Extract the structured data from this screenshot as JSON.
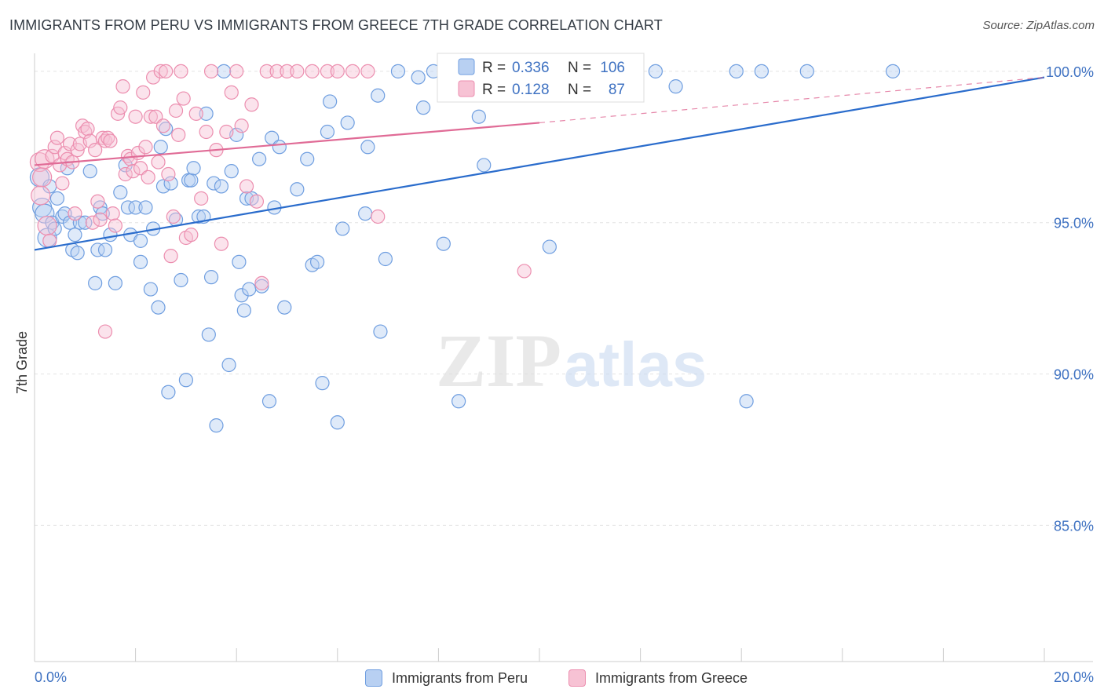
{
  "chart_data": {
    "type": "scatter",
    "title": "IMMIGRANTS FROM PERU VS IMMIGRANTS FROM GREECE 7TH GRADE CORRELATION CHART",
    "source": "Source: ZipAtlas.com",
    "ylabel": "7th Grade",
    "xlabel": "",
    "xlim": [
      0,
      20
    ],
    "ylim": [
      80.5,
      100.8
    ],
    "x_tick_labels": [
      "0.0%",
      "20.0%"
    ],
    "y_ticks": [
      {
        "value": 100,
        "label": "100.0%"
      },
      {
        "value": 95,
        "label": "95.0%"
      },
      {
        "value": 90,
        "label": "90.0%"
      },
      {
        "value": 85,
        "label": "85.0%"
      }
    ],
    "grid": true,
    "watermark": "ZIPatlas",
    "legend": {
      "placement": "top-center",
      "rows": [
        {
          "r_label": "R =",
          "r_value": "0.336",
          "n_label": "N =",
          "n_value": "106"
        },
        {
          "r_label": "R =",
          "r_value": "0.128",
          "n_label": "N =",
          "n_value": "87"
        }
      ]
    },
    "series": [
      {
        "name": "Immigrants from Peru",
        "color": "#6f9ee0",
        "fill": "#b8d0f2",
        "line_color": "#2a6ccc",
        "trend": {
          "x": [
            0,
            20
          ],
          "y": [
            94.1,
            99.8
          ]
        },
        "points": [
          [
            0.1,
            96.5
          ],
          [
            0.15,
            95.5
          ],
          [
            0.2,
            95.3
          ],
          [
            0.25,
            94.5
          ],
          [
            0.3,
            96.2
          ],
          [
            0.35,
            95.0
          ],
          [
            0.4,
            94.8
          ],
          [
            0.45,
            95.8
          ],
          [
            0.55,
            95.2
          ],
          [
            0.6,
            95.3
          ],
          [
            0.65,
            96.8
          ],
          [
            0.7,
            95.0
          ],
          [
            0.75,
            94.1
          ],
          [
            0.8,
            94.6
          ],
          [
            0.85,
            94.0
          ],
          [
            0.9,
            95.0
          ],
          [
            1.0,
            95.0
          ],
          [
            1.1,
            96.7
          ],
          [
            1.2,
            93.0
          ],
          [
            1.25,
            94.1
          ],
          [
            1.3,
            95.5
          ],
          [
            1.35,
            95.3
          ],
          [
            1.4,
            94.1
          ],
          [
            1.5,
            94.6
          ],
          [
            1.6,
            93.0
          ],
          [
            1.7,
            96.0
          ],
          [
            1.8,
            96.9
          ],
          [
            1.85,
            95.5
          ],
          [
            1.9,
            94.6
          ],
          [
            2.0,
            95.5
          ],
          [
            2.1,
            94.4
          ],
          [
            2.1,
            93.7
          ],
          [
            2.2,
            95.5
          ],
          [
            2.3,
            92.8
          ],
          [
            2.35,
            94.8
          ],
          [
            2.45,
            92.2
          ],
          [
            2.5,
            97.5
          ],
          [
            2.55,
            96.2
          ],
          [
            2.6,
            98.1
          ],
          [
            2.65,
            89.4
          ],
          [
            2.7,
            96.3
          ],
          [
            2.8,
            95.1
          ],
          [
            2.9,
            93.1
          ],
          [
            3.0,
            89.8
          ],
          [
            3.05,
            96.4
          ],
          [
            3.1,
            96.4
          ],
          [
            3.15,
            96.8
          ],
          [
            3.25,
            95.2
          ],
          [
            3.35,
            95.2
          ],
          [
            3.4,
            98.6
          ],
          [
            3.45,
            91.3
          ],
          [
            3.5,
            93.2
          ],
          [
            3.55,
            96.3
          ],
          [
            3.6,
            88.3
          ],
          [
            3.7,
            96.2
          ],
          [
            3.75,
            100
          ],
          [
            3.85,
            90.3
          ],
          [
            3.9,
            96.7
          ],
          [
            4.0,
            97.9
          ],
          [
            4.05,
            93.7
          ],
          [
            4.1,
            92.6
          ],
          [
            4.15,
            92.1
          ],
          [
            4.2,
            95.8
          ],
          [
            4.25,
            92.8
          ],
          [
            4.3,
            95.8
          ],
          [
            4.45,
            97.1
          ],
          [
            4.5,
            92.9
          ],
          [
            4.65,
            89.1
          ],
          [
            4.7,
            97.8
          ],
          [
            4.75,
            95.5
          ],
          [
            4.85,
            97.5
          ],
          [
            4.95,
            92.2
          ],
          [
            5.2,
            96.1
          ],
          [
            5.4,
            97.1
          ],
          [
            5.5,
            93.6
          ],
          [
            5.6,
            93.7
          ],
          [
            5.7,
            89.7
          ],
          [
            5.8,
            98.0
          ],
          [
            5.85,
            99.0
          ],
          [
            6.0,
            88.4
          ],
          [
            6.1,
            94.8
          ],
          [
            6.2,
            98.3
          ],
          [
            6.55,
            95.3
          ],
          [
            6.6,
            97.5
          ],
          [
            6.8,
            99.2
          ],
          [
            6.85,
            91.4
          ],
          [
            6.95,
            93.8
          ],
          [
            7.2,
            100
          ],
          [
            7.6,
            99.8
          ],
          [
            7.7,
            98.8
          ],
          [
            7.9,
            100
          ],
          [
            8.1,
            94.3
          ],
          [
            8.4,
            89.1
          ],
          [
            8.8,
            98.5
          ],
          [
            8.9,
            96.9
          ],
          [
            9.5,
            100
          ],
          [
            10.2,
            94.2
          ],
          [
            10.5,
            100
          ],
          [
            10.8,
            99.5
          ],
          [
            11.5,
            100
          ],
          [
            12.3,
            100
          ],
          [
            12.7,
            99.5
          ],
          [
            13.9,
            100
          ],
          [
            14.1,
            89.1
          ],
          [
            14.4,
            100
          ],
          [
            15.3,
            100
          ],
          [
            17.0,
            100
          ]
        ]
      },
      {
        "name": "Immigrants from Greece",
        "color": "#ec8eaf",
        "fill": "#f7c2d4",
        "line_color": "#e06b96",
        "trend": {
          "x": [
            0,
            10
          ],
          "y": [
            96.9,
            98.3
          ]
        },
        "trend_dashed": {
          "x": [
            10,
            20
          ],
          "y": [
            98.3,
            99.8
          ]
        },
        "points": [
          [
            0.1,
            97.0
          ],
          [
            0.12,
            95.9
          ],
          [
            0.15,
            96.5
          ],
          [
            0.2,
            97.1
          ],
          [
            0.25,
            94.9
          ],
          [
            0.3,
            94.4
          ],
          [
            0.35,
            97.2
          ],
          [
            0.4,
            97.5
          ],
          [
            0.45,
            97.8
          ],
          [
            0.5,
            96.9
          ],
          [
            0.55,
            96.3
          ],
          [
            0.6,
            97.3
          ],
          [
            0.65,
            97.1
          ],
          [
            0.7,
            97.6
          ],
          [
            0.75,
            97.0
          ],
          [
            0.8,
            95.3
          ],
          [
            0.85,
            97.4
          ],
          [
            0.9,
            97.6
          ],
          [
            0.95,
            98.2
          ],
          [
            1.0,
            98.0
          ],
          [
            1.05,
            98.1
          ],
          [
            1.1,
            97.7
          ],
          [
            1.15,
            95.0
          ],
          [
            1.2,
            97.4
          ],
          [
            1.25,
            95.7
          ],
          [
            1.3,
            95.1
          ],
          [
            1.35,
            97.8
          ],
          [
            1.4,
            97.7
          ],
          [
            1.45,
            97.8
          ],
          [
            1.5,
            97.7
          ],
          [
            1.55,
            95.3
          ],
          [
            1.6,
            94.9
          ],
          [
            1.65,
            98.6
          ],
          [
            1.7,
            98.8
          ],
          [
            1.75,
            99.5
          ],
          [
            1.8,
            96.6
          ],
          [
            1.85,
            97.2
          ],
          [
            1.9,
            97.1
          ],
          [
            1.95,
            96.7
          ],
          [
            2.0,
            98.5
          ],
          [
            2.05,
            97.3
          ],
          [
            2.1,
            96.8
          ],
          [
            2.15,
            99.3
          ],
          [
            2.2,
            97.5
          ],
          [
            2.25,
            96.5
          ],
          [
            2.3,
            98.5
          ],
          [
            2.35,
            99.8
          ],
          [
            2.4,
            98.5
          ],
          [
            2.45,
            97.0
          ],
          [
            2.5,
            100
          ],
          [
            2.55,
            98.2
          ],
          [
            2.6,
            100
          ],
          [
            2.65,
            96.6
          ],
          [
            2.7,
            93.9
          ],
          [
            2.75,
            95.2
          ],
          [
            2.8,
            98.7
          ],
          [
            2.85,
            97.9
          ],
          [
            2.9,
            100
          ],
          [
            2.95,
            99.1
          ],
          [
            3.0,
            94.5
          ],
          [
            3.1,
            94.6
          ],
          [
            3.2,
            98.6
          ],
          [
            3.3,
            95.8
          ],
          [
            3.4,
            98.0
          ],
          [
            3.5,
            100
          ],
          [
            3.6,
            97.4
          ],
          [
            3.7,
            94.3
          ],
          [
            3.8,
            98.0
          ],
          [
            3.9,
            99.3
          ],
          [
            4.0,
            100
          ],
          [
            4.1,
            98.2
          ],
          [
            4.2,
            96.2
          ],
          [
            4.3,
            98.9
          ],
          [
            4.4,
            95.7
          ],
          [
            4.5,
            93.0
          ],
          [
            4.6,
            100
          ],
          [
            4.8,
            100
          ],
          [
            5.0,
            100
          ],
          [
            5.2,
            100
          ],
          [
            5.5,
            100
          ],
          [
            5.8,
            100
          ],
          [
            6.0,
            100
          ],
          [
            6.3,
            100
          ],
          [
            6.6,
            100
          ],
          [
            6.8,
            95.2
          ],
          [
            9.7,
            93.4
          ],
          [
            1.4,
            91.4
          ]
        ]
      }
    ]
  }
}
